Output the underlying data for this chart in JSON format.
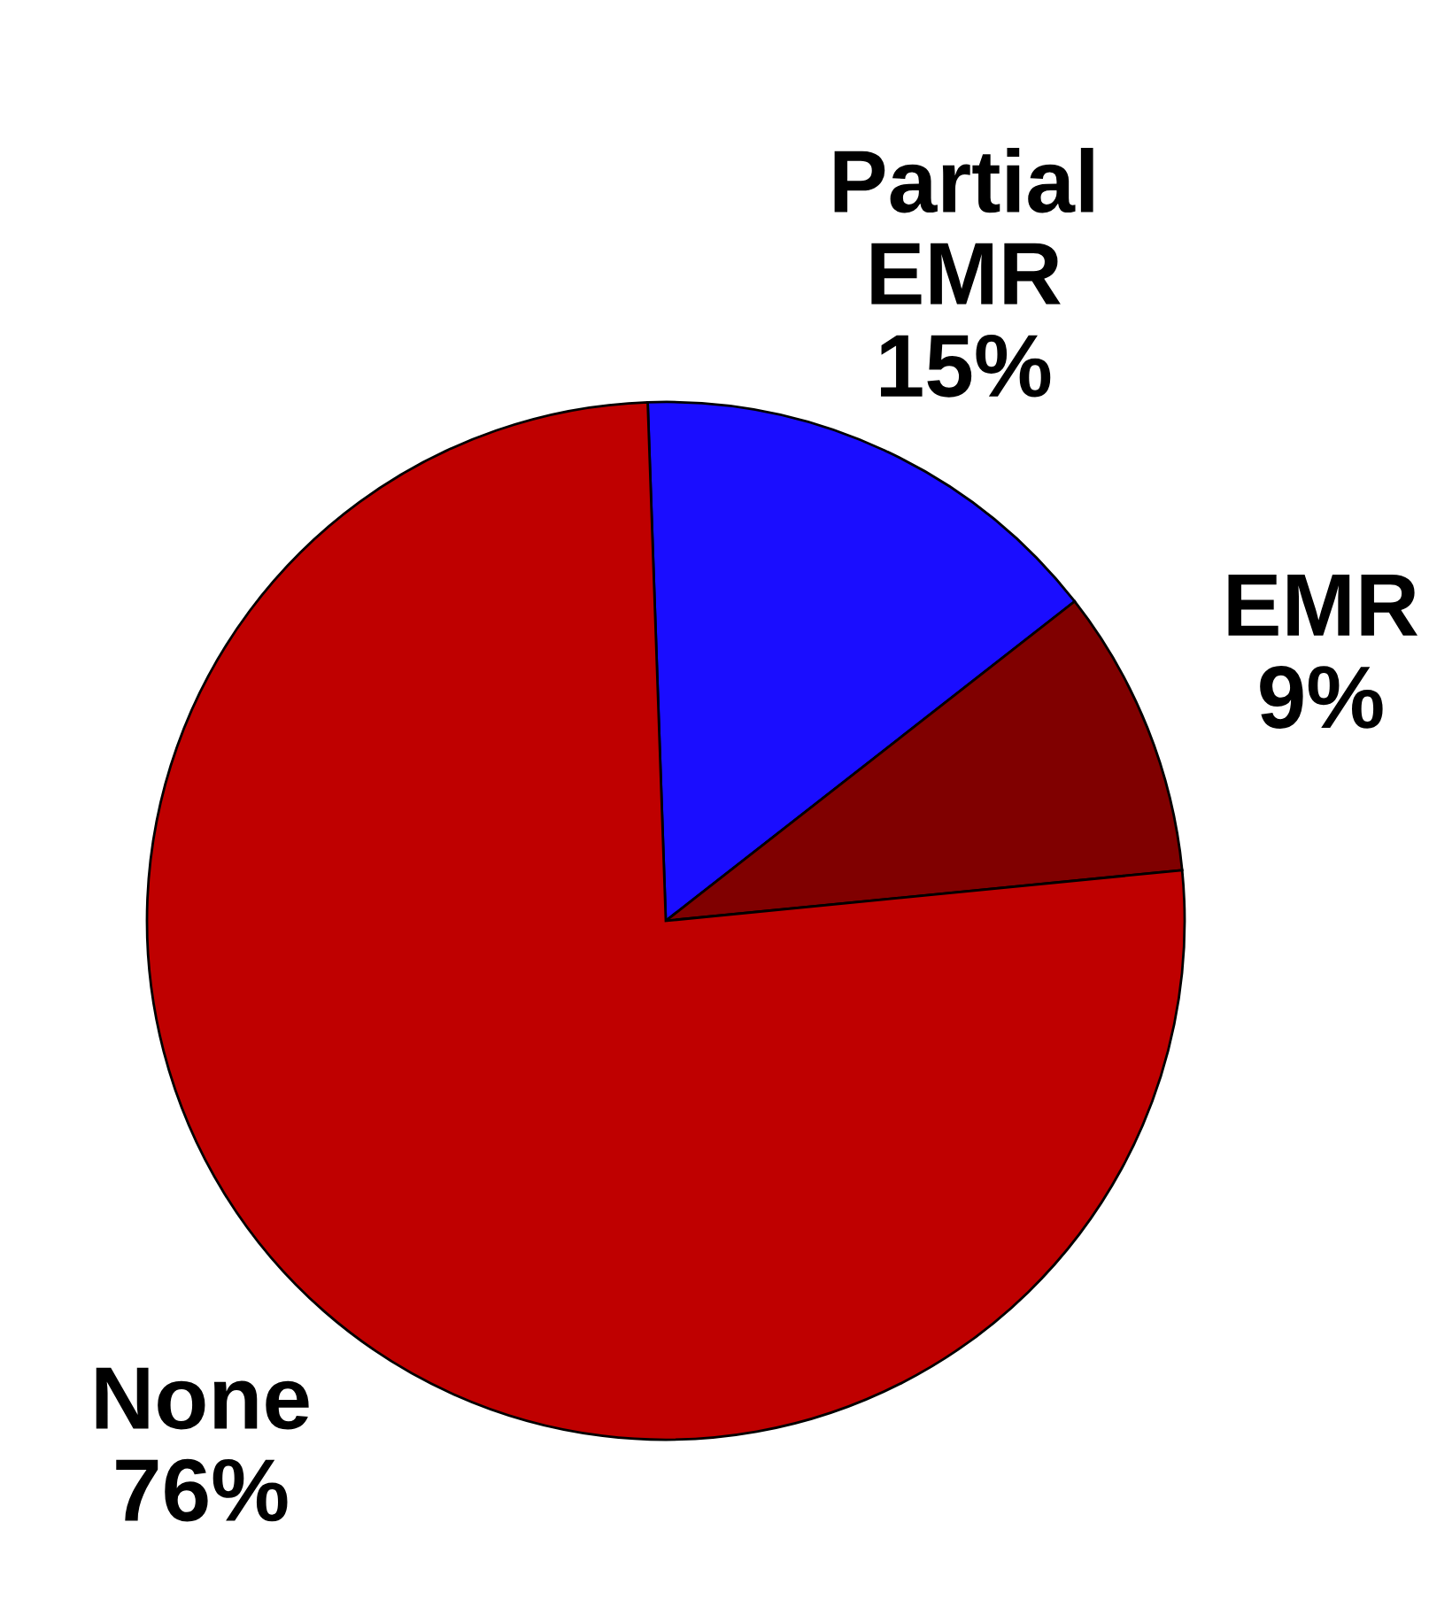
{
  "chart_data": {
    "type": "pie",
    "categories": [
      "Partial EMR",
      "EMR",
      "None"
    ],
    "values": [
      15,
      9,
      76
    ],
    "value_labels": [
      "15%",
      "9%",
      "76%"
    ],
    "colors": [
      "#1a0dff",
      "#800000",
      "#bf0000"
    ],
    "legend": false
  }
}
